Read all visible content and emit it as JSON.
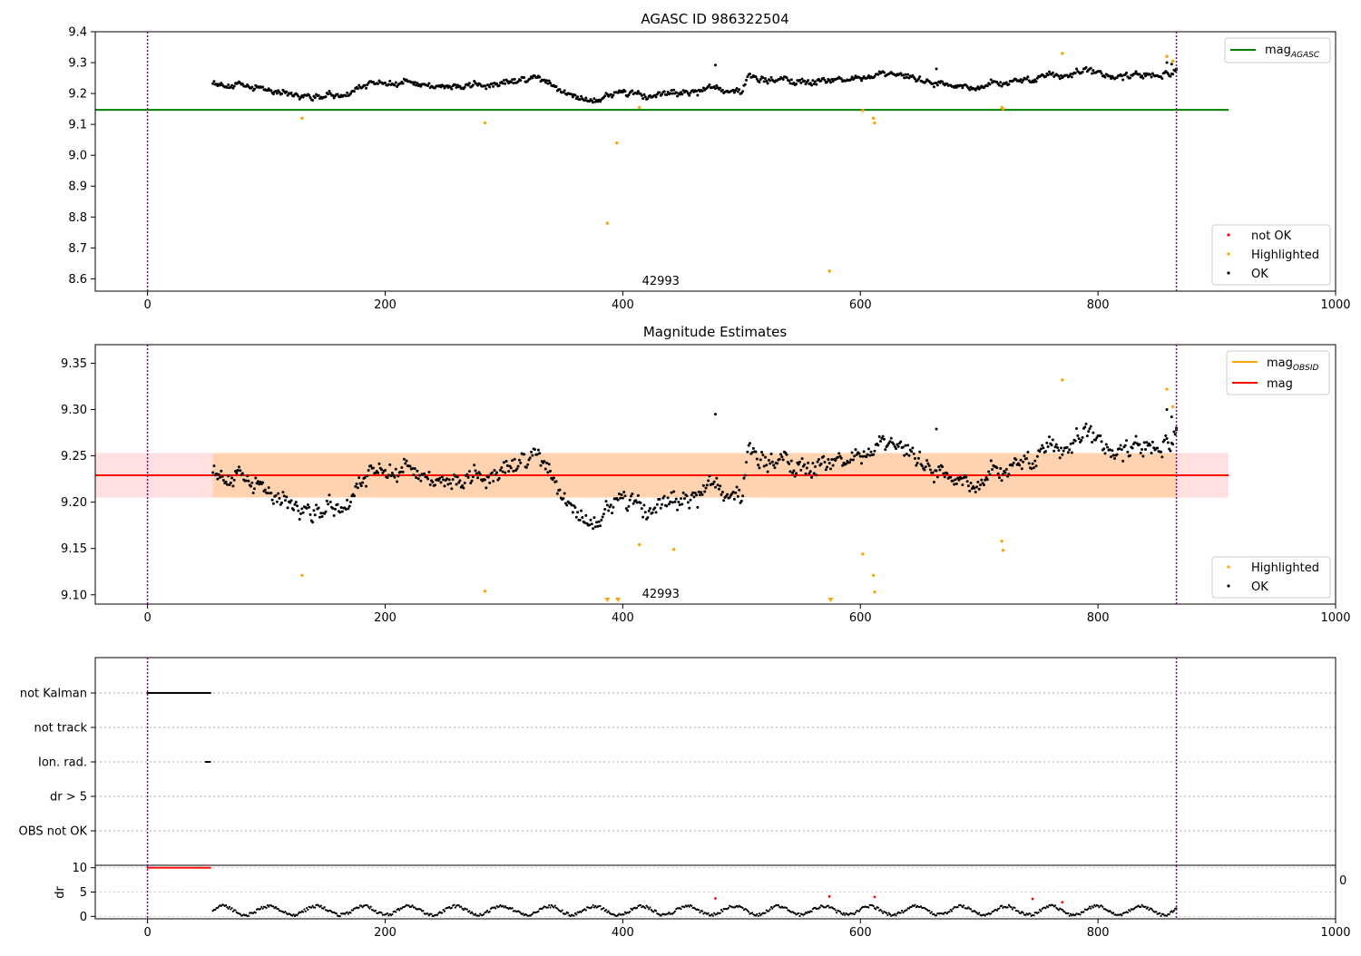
{
  "chart_data": [
    {
      "type": "scatter",
      "title": "AGASC ID 986322504",
      "xlim": [
        -44,
        1000
      ],
      "ylim": [
        8.56,
        9.4
      ],
      "x_ticks": [
        0,
        200,
        400,
        600,
        800,
        1000
      ],
      "y_ticks": [
        8.6,
        8.7,
        8.8,
        8.9,
        9.0,
        9.1,
        9.2,
        9.3,
        9.4
      ],
      "x_tick_labels": [
        "0",
        "200",
        "400",
        "600",
        "800",
        "1000"
      ],
      "y_tick_labels": [
        "8.6",
        "8.7",
        "8.8",
        "8.9",
        "9.0",
        "9.1",
        "9.2",
        "9.3",
        "9.4"
      ],
      "reference_lines": [
        {
          "label": "mag",
          "label_sub": "AGASC",
          "value": 9.147,
          "x_range": [
            -44,
            910
          ],
          "color": "#008000"
        }
      ],
      "vlines": [
        0,
        866
      ],
      "annotation": "42993",
      "annotation_x": 432,
      "annotation_y": 8.58,
      "ok_series": {
        "name": "OK",
        "color": "#000000",
        "baseline": [
          [
            55,
            9.24
          ],
          [
            80,
            9.22
          ],
          [
            110,
            9.21
          ],
          [
            140,
            9.19
          ],
          [
            170,
            9.2
          ],
          [
            195,
            9.24
          ],
          [
            225,
            9.23
          ],
          [
            260,
            9.22
          ],
          [
            300,
            9.23
          ],
          [
            330,
            9.25
          ],
          [
            350,
            9.2
          ],
          [
            380,
            9.18
          ],
          [
            400,
            9.21
          ],
          [
            420,
            9.19
          ],
          [
            450,
            9.2
          ],
          [
            480,
            9.22
          ],
          [
            500,
            9.21
          ],
          [
            505,
            9.25
          ],
          [
            560,
            9.24
          ],
          [
            600,
            9.25
          ],
          [
            640,
            9.255
          ],
          [
            680,
            9.22
          ],
          [
            720,
            9.23
          ],
          [
            745,
            9.245
          ],
          [
            780,
            9.265
          ],
          [
            820,
            9.255
          ],
          [
            860,
            9.27
          ]
        ],
        "extra": [
          [
            478,
            9.292
          ],
          [
            664,
            9.28
          ],
          [
            858,
            9.3
          ],
          [
            862,
            9.295
          ],
          [
            866,
            9.28
          ]
        ]
      },
      "highlighted": {
        "name": "Highlighted",
        "color": "#FFA500",
        "points": [
          [
            130,
            9.12
          ],
          [
            284,
            9.105
          ],
          [
            387,
            8.78
          ],
          [
            395,
            9.04
          ],
          [
            414,
            9.155
          ],
          [
            602,
            9.145
          ],
          [
            611,
            9.12
          ],
          [
            612,
            9.105
          ],
          [
            574,
            8.625
          ],
          [
            719,
            9.155
          ],
          [
            720,
            9.15
          ],
          [
            770,
            9.33
          ],
          [
            858,
            9.32
          ],
          [
            863,
            9.305
          ]
        ]
      },
      "not_ok": {
        "name": "not OK",
        "color": "#FF0000",
        "points": []
      },
      "legend_upper": "upper right",
      "legend_lower": "lower right"
    },
    {
      "type": "scatter",
      "title": "Magnitude Estimates",
      "xlim": [
        -44,
        1000
      ],
      "ylim": [
        9.09,
        9.37
      ],
      "x_ticks": [
        0,
        200,
        400,
        600,
        800,
        1000
      ],
      "y_ticks": [
        9.1,
        9.15,
        9.2,
        9.25,
        9.3,
        9.35
      ],
      "x_tick_labels": [
        "0",
        "200",
        "400",
        "600",
        "800",
        "1000"
      ],
      "y_tick_labels": [
        "9.10",
        "9.15",
        "9.20",
        "9.25",
        "9.30",
        "9.35"
      ],
      "bands": [
        {
          "x_range": [
            -44,
            910
          ],
          "y_range": [
            9.205,
            9.253
          ],
          "color": "#FF0000",
          "opacity": 0.12
        },
        {
          "x_range": [
            55,
            866
          ],
          "y_range": [
            9.205,
            9.253
          ],
          "color": "#FFA500",
          "opacity": 0.22
        }
      ],
      "reference_lines": [
        {
          "label": "mag",
          "label_sub": "OBSID",
          "value": 9.229,
          "x_range": [
            55,
            866
          ],
          "color": "#FFA500"
        },
        {
          "label": "mag",
          "label_sub": "",
          "value": 9.229,
          "x_range": [
            -44,
            910
          ],
          "color": "#FF0000"
        }
      ],
      "vlines": [
        0,
        866
      ],
      "annotation": "42993",
      "annotation_x": 432,
      "annotation_y": 9.097,
      "ok_series": {
        "name": "OK",
        "color": "#000000",
        "baseline": [
          [
            55,
            9.24
          ],
          [
            80,
            9.22
          ],
          [
            110,
            9.21
          ],
          [
            140,
            9.19
          ],
          [
            170,
            9.2
          ],
          [
            195,
            9.24
          ],
          [
            225,
            9.23
          ],
          [
            260,
            9.22
          ],
          [
            300,
            9.23
          ],
          [
            330,
            9.25
          ],
          [
            350,
            9.2
          ],
          [
            380,
            9.18
          ],
          [
            400,
            9.21
          ],
          [
            420,
            9.19
          ],
          [
            450,
            9.2
          ],
          [
            480,
            9.22
          ],
          [
            500,
            9.21
          ],
          [
            505,
            9.25
          ],
          [
            560,
            9.24
          ],
          [
            600,
            9.25
          ],
          [
            640,
            9.255
          ],
          [
            680,
            9.22
          ],
          [
            720,
            9.23
          ],
          [
            745,
            9.245
          ],
          [
            780,
            9.265
          ],
          [
            820,
            9.255
          ],
          [
            860,
            9.27
          ]
        ],
        "extra": [
          [
            478,
            9.295
          ],
          [
            664,
            9.279
          ],
          [
            858,
            9.3
          ],
          [
            862,
            9.292
          ],
          [
            866,
            9.28
          ]
        ]
      },
      "highlighted": {
        "name": "Highlighted",
        "color": "#FFA500",
        "points": [
          [
            130,
            9.121
          ],
          [
            284,
            9.104
          ],
          [
            414,
            9.154
          ],
          [
            443,
            9.149
          ],
          [
            602,
            9.144
          ],
          [
            611,
            9.121
          ],
          [
            612,
            9.103
          ],
          [
            719,
            9.158
          ],
          [
            720,
            9.148
          ],
          [
            770,
            9.332
          ],
          [
            858,
            9.322
          ],
          [
            863,
            9.303
          ]
        ]
      },
      "offscale_markers": [
        387,
        396,
        575
      ],
      "legend_upper": "upper right",
      "legend_lower": "lower right"
    },
    {
      "type": "scatter",
      "title": "",
      "categories": [
        "not Kalman",
        "not track",
        "Ion. rad.",
        "dr > 5",
        "OBS not OK"
      ],
      "flag_series": [
        {
          "category": "not Kalman",
          "x_range": [
            0,
            54
          ],
          "color": "#000000"
        },
        {
          "category": "Ion. rad.",
          "x_range": [
            49,
            53
          ],
          "color": "#000000"
        }
      ],
      "vlines": [
        0,
        866
      ],
      "partial_tick_label": "0"
    },
    {
      "type": "scatter",
      "title": "",
      "ylabel": "dr",
      "xlim": [
        -44,
        1000
      ],
      "ylim": [
        -0.5,
        10.5
      ],
      "x_ticks": [
        0,
        200,
        400,
        600,
        800,
        1000
      ],
      "y_ticks": [
        0,
        5,
        10
      ],
      "x_tick_labels": [
        "0",
        "200",
        "400",
        "600",
        "800",
        "1000"
      ],
      "y_tick_labels": [
        "0",
        "5",
        "10"
      ],
      "vlines": [
        0,
        866
      ],
      "clipped_series": {
        "x_range": [
          0,
          54
        ],
        "value": 10,
        "color": "#FF0000"
      },
      "ok_series": {
        "color": "#000000",
        "x_range": [
          55,
          866
        ],
        "baseline": 1.2
      },
      "red_points": [
        [
          478,
          3.7
        ],
        [
          574,
          4.1
        ],
        [
          612,
          4.0
        ],
        [
          745,
          3.6
        ],
        [
          770,
          2.9
        ]
      ]
    }
  ]
}
